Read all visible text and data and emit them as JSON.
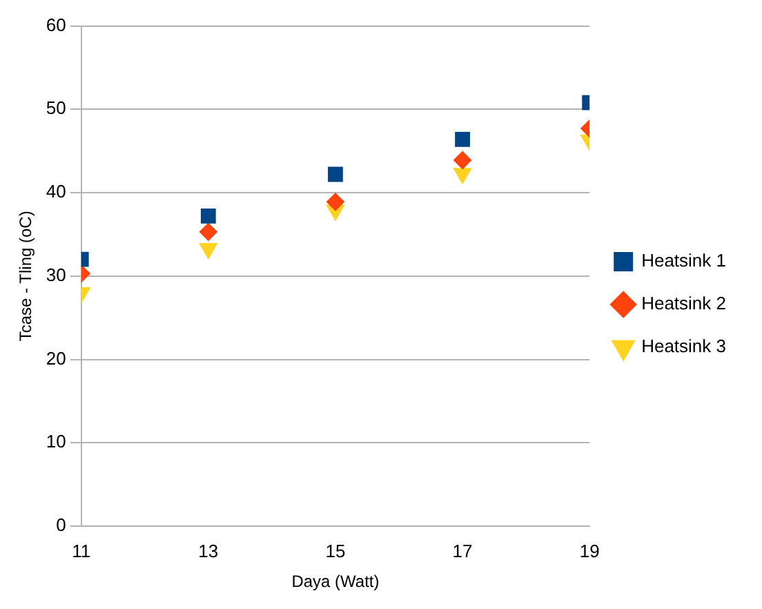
{
  "chart_data": {
    "type": "scatter",
    "xlabel": "Daya (Watt)",
    "ylabel": "Tcase - Tling (oC)",
    "x": [
      11,
      13,
      15,
      17,
      19
    ],
    "series": [
      {
        "name": "Heatsink 1",
        "color": "#004586",
        "marker": "square",
        "values": [
          32.0,
          37.2,
          42.2,
          46.4,
          50.8
        ]
      },
      {
        "name": "Heatsink 2",
        "color": "#ff420e",
        "marker": "diamond",
        "values": [
          30.3,
          35.3,
          38.9,
          43.9,
          47.7
        ]
      },
      {
        "name": "Heatsink 3",
        "color": "#ffd320",
        "marker": "triangle-down",
        "values": [
          28.0,
          33.3,
          37.9,
          42.3,
          46.3
        ]
      }
    ],
    "xlim": [
      11,
      19
    ],
    "xticks": [
      11,
      13,
      15,
      17,
      19
    ],
    "ylim": [
      0,
      60
    ],
    "yticks": [
      0,
      10,
      20,
      30,
      40,
      50,
      60
    ],
    "grid": "y",
    "legend": "right"
  }
}
